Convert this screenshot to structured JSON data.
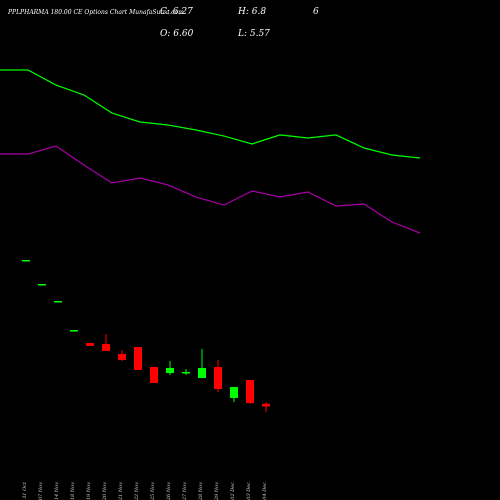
{
  "chart_data": {
    "type": "candlestick",
    "title": "PPLPHARMA 180.00 CE Options Chart MunafaSutra.com",
    "header": {
      "close": "C: 6.27",
      "open": "O: 6.60",
      "high": "H: 6.8",
      "low": "L: 5.57",
      "extra": "6"
    },
    "categories": [
      "31 Oct",
      "07 Nov",
      "14 Nov",
      "18 Nov",
      "19 Nov",
      "20 Nov",
      "21 Nov",
      "22 Nov",
      "25 Nov",
      "26 Nov",
      "27 Nov",
      "28 Nov",
      "29 Nov",
      "02 Dec",
      "03 Dec",
      "04 Dec"
    ],
    "open": [
      24.74,
      21.71,
      19.57,
      15.91,
      14.27,
      14.15,
      12.89,
      13.77,
      11.25,
      10.49,
      10.49,
      9.86,
      11.25,
      7.34,
      9.61,
      6.6
    ],
    "high": [
      24.74,
      21.71,
      19.57,
      15.91,
      14.27,
      15.41,
      13.39,
      13.77,
      11.25,
      12.0,
      11.0,
      13.52,
      12.13,
      8.73,
      9.61,
      6.8
    ],
    "low": [
      24.74,
      21.71,
      19.57,
      15.91,
      13.9,
      13.27,
      12.0,
      10.87,
      9.23,
      10.24,
      10.24,
      9.86,
      8.1,
      6.83,
      6.58,
      5.57
    ],
    "close": [
      24.74,
      21.71,
      19.57,
      15.91,
      13.9,
      13.27,
      12.13,
      10.87,
      9.23,
      11.12,
      10.62,
      11.12,
      8.47,
      8.73,
      6.71,
      6.27
    ],
    "up_color": "#00ff00",
    "down_color": "#ff0000",
    "series": [
      {
        "color": "#00ff00",
        "values": [
          48.7,
          48.7,
          46.8,
          45.54,
          43.27,
          42.14,
          41.76,
          41.13,
          40.37,
          39.37,
          40.51,
          40.12,
          40.51,
          38.86,
          37.98,
          37.6
        ]
      },
      {
        "color": "#aa00aa",
        "values": [
          38.1,
          38.1,
          39.11,
          36.71,
          34.45,
          35.08,
          34.2,
          32.68,
          31.67,
          33.44,
          32.68,
          33.31,
          31.55,
          31.8,
          29.53,
          28.14
        ]
      }
    ],
    "ylim": [
      -3,
      55
    ]
  }
}
